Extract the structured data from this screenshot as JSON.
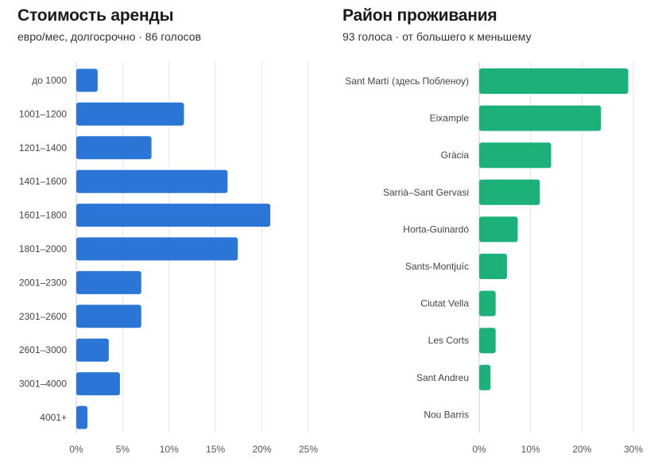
{
  "colors": {
    "rent_bar": "#2a75d6",
    "district_bar": "#1cb07a",
    "grid": "#e3e3e3",
    "axis": "#cccccc"
  },
  "chart_data": [
    {
      "type": "bar",
      "orientation": "horizontal",
      "title": "Стоимость аренды",
      "subtitle": "евро/мес, долгосрочно · 86 голосов",
      "categories": [
        "до 1000",
        "1001–1200",
        "1201–1400",
        "1401–1600",
        "1601–1800",
        "1801–2000",
        "2001–2300",
        "2301–2600",
        "2601–3000",
        "3001–4000",
        "4001+"
      ],
      "values": [
        2.3,
        11.6,
        8.1,
        16.3,
        20.9,
        17.4,
        7.0,
        7.0,
        3.5,
        4.7,
        1.2
      ],
      "xlim": [
        0,
        25
      ],
      "xticks": [
        0,
        5,
        10,
        15,
        20,
        25
      ],
      "xtick_labels": [
        "0%",
        "5%",
        "10%",
        "15%",
        "20%",
        "25%"
      ],
      "unit": "%",
      "grid": true
    },
    {
      "type": "bar",
      "orientation": "horizontal",
      "title": "Район проживания",
      "subtitle": "93 голоса · от большего к меньшему",
      "categories": [
        "Sant Martí (здесь Побленоу)",
        "Eixample",
        "Gràcia",
        "Sarrià–Sant Gervasi",
        "Horta-Guinardó",
        "Sants-Montjuïc",
        "Ciutat Vella",
        "Les Corts",
        "Sant Andreu",
        "Nou Barris"
      ],
      "values": [
        29.0,
        23.7,
        14.0,
        11.8,
        7.5,
        5.4,
        3.2,
        3.2,
        2.2,
        0
      ],
      "xlim": [
        0,
        30
      ],
      "xticks": [
        0,
        10,
        20,
        30
      ],
      "xtick_labels": [
        "0%",
        "10%",
        "20%",
        "30%"
      ],
      "unit": "%",
      "grid": true
    }
  ]
}
